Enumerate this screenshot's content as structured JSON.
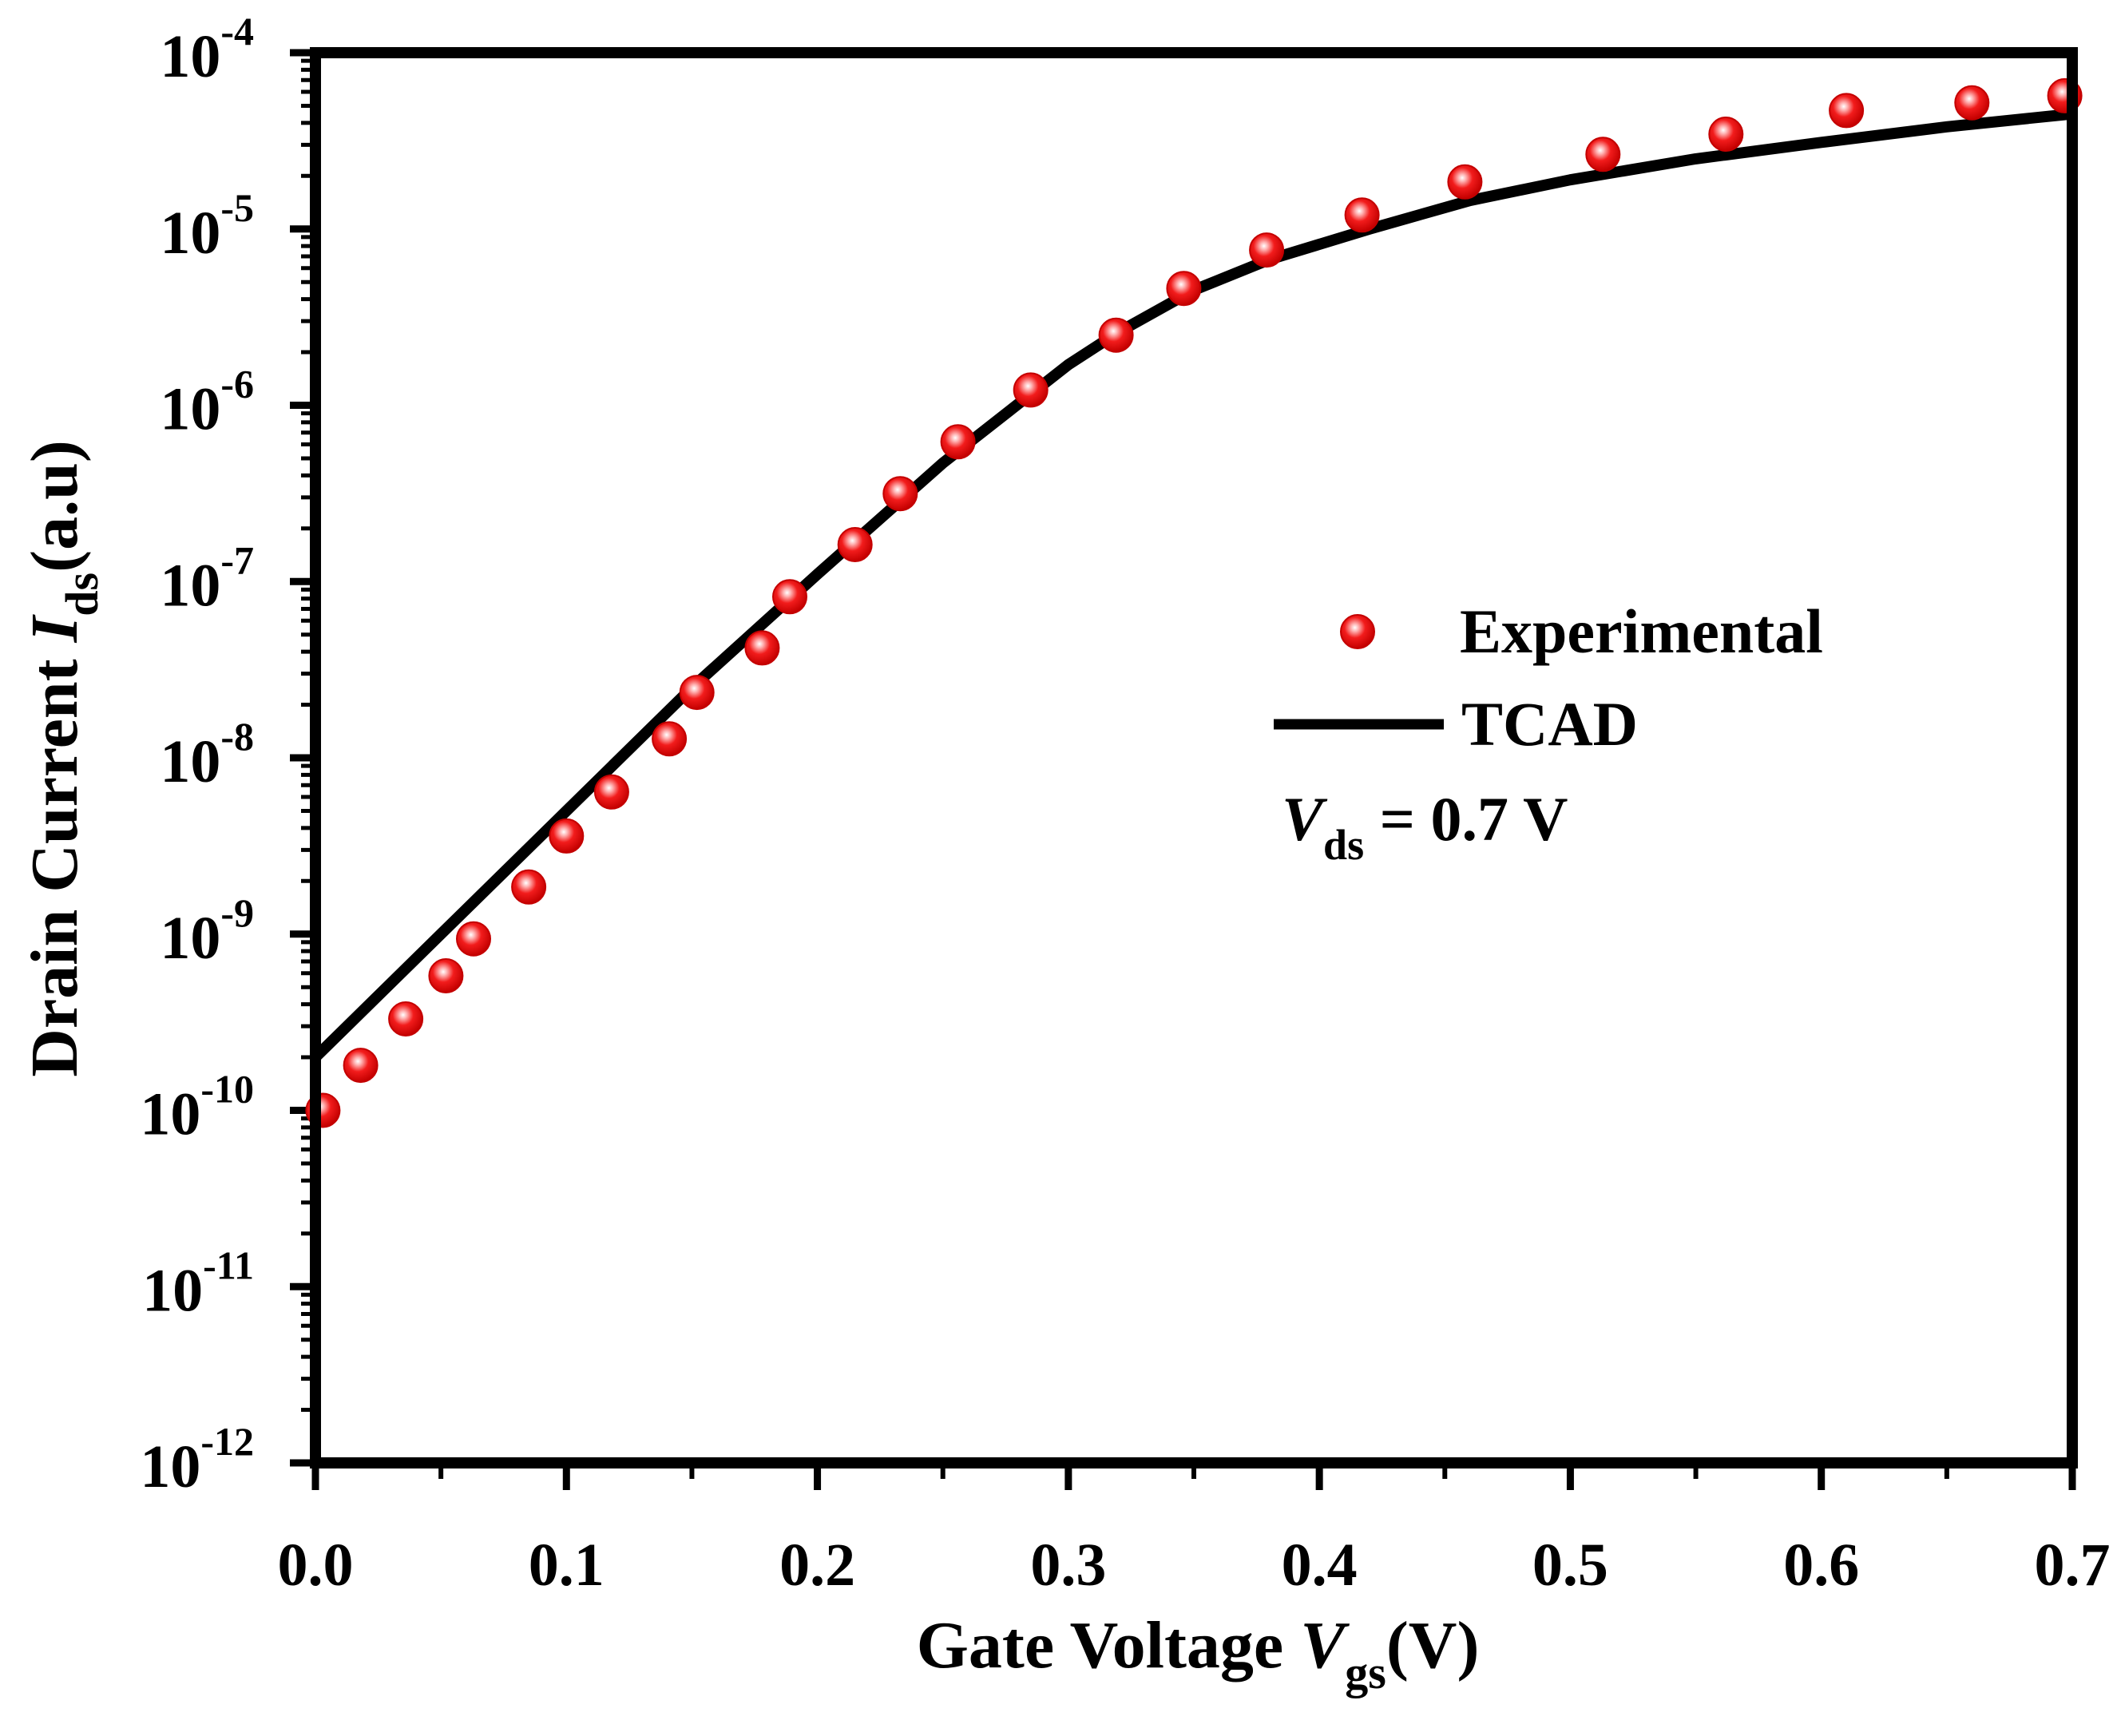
{
  "chart_data": {
    "type": "scatter",
    "xlabel": {
      "main": "Gate Voltage ",
      "var": "V",
      "sub": "gs",
      "unit": "(V)"
    },
    "ylabel": {
      "main": "Drain Current ",
      "var": "I",
      "sub": "ds",
      "unit": "(a.u)"
    },
    "x_axis": {
      "range": [
        0.0,
        0.7
      ],
      "ticks": [
        "0.0",
        "0.1",
        "0.2",
        "0.3",
        "0.4",
        "0.5",
        "0.6",
        "0.7"
      ]
    },
    "y_axis": {
      "scale": "log",
      "range": [
        1e-12,
        0.0001
      ],
      "ticks": [
        {
          "base": "10",
          "exp": "-12"
        },
        {
          "base": "10",
          "exp": "-11"
        },
        {
          "base": "10",
          "exp": "-10"
        },
        {
          "base": "10",
          "exp": "-9"
        },
        {
          "base": "10",
          "exp": "-8"
        },
        {
          "base": "10",
          "exp": "-7"
        },
        {
          "base": "10",
          "exp": "-6"
        },
        {
          "base": "10",
          "exp": "-5"
        },
        {
          "base": "10",
          "exp": "-4"
        }
      ]
    },
    "grid": false,
    "legend_position": "right-middle",
    "series": [
      {
        "name": "Experimental",
        "kind": "scatter",
        "color": "#e60000",
        "x": [
          0.003,
          0.018,
          0.036,
          0.052,
          0.063,
          0.085,
          0.1,
          0.118,
          0.141,
          0.152,
          0.178,
          0.189,
          0.215,
          0.233,
          0.256,
          0.285,
          0.319,
          0.346,
          0.379,
          0.417,
          0.458,
          0.513,
          0.562,
          0.61,
          0.66,
          0.697
        ],
        "y": [
          1e-10,
          1.8e-10,
          3.3e-10,
          5.8e-10,
          9.4e-10,
          1.85e-09,
          3.6e-09,
          6.4e-09,
          1.28e-08,
          2.35e-08,
          4.2e-08,
          8.2e-08,
          1.62e-07,
          3.15e-07,
          6.2e-07,
          1.22e-06,
          2.5e-06,
          4.6e-06,
          7.6e-06,
          1.2e-05,
          1.85e-05,
          2.65e-05,
          3.45e-05,
          4.7e-05,
          5.2e-05,
          5.7e-05
        ]
      },
      {
        "name": "TCAD",
        "kind": "line",
        "color": "#000000",
        "x": [
          0.0,
          0.05,
          0.1,
          0.15,
          0.2,
          0.25,
          0.3,
          0.32,
          0.35,
          0.38,
          0.42,
          0.46,
          0.5,
          0.55,
          0.6,
          0.65,
          0.7
        ],
        "y": [
          2e-10,
          1e-09,
          5e-09,
          2.5e-08,
          1.1e-07,
          4.7e-07,
          1.7e-06,
          2.6e-06,
          4.5e-06,
          6.7e-06,
          1e-05,
          1.45e-05,
          1.9e-05,
          2.5e-05,
          3.1e-05,
          3.8e-05,
          4.5e-05
        ]
      }
    ],
    "annotation": {
      "var": "V",
      "sub": "ds",
      "text": " = 0.7 V"
    }
  }
}
